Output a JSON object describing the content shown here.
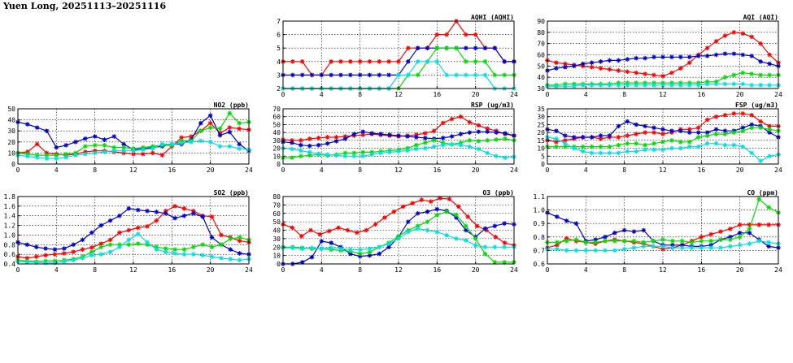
{
  "page": {
    "title": "Yuen Long, 20251113–20251116"
  },
  "colors": {
    "red": "#ff0000",
    "blue": "#0000cc",
    "green": "#00dd00",
    "cyan": "#00e0e0"
  },
  "chart_data": [
    {
      "id": "aqhi",
      "type": "line",
      "title": "AQHI (AQHI)",
      "xlim": [
        0,
        24
      ],
      "ylim": [
        2,
        7
      ],
      "xticks": [
        "0",
        "4",
        "8",
        "12",
        "16",
        "20",
        "24"
      ],
      "yticks": [
        "2",
        "3",
        "4",
        "5",
        "6",
        "7"
      ],
      "series": [
        {
          "color": "red",
          "values": [
            4,
            4,
            4,
            3,
            3,
            4,
            4,
            4,
            4,
            4,
            4,
            4,
            4,
            5,
            5,
            5,
            6,
            6,
            7,
            6,
            6,
            5,
            5,
            4,
            4
          ]
        },
        {
          "color": "blue",
          "values": [
            3,
            3,
            3,
            3,
            3,
            3,
            3,
            3,
            3,
            3,
            3,
            3,
            3,
            4,
            5,
            5,
            5,
            5,
            5,
            5,
            5,
            5,
            5,
            4,
            4
          ]
        },
        {
          "color": "green",
          "values": [
            2,
            2,
            2,
            2,
            2,
            2,
            2,
            2,
            2,
            2,
            2,
            2,
            2,
            3,
            3,
            4,
            5,
            5,
            5,
            4,
            4,
            4,
            3,
            3,
            3
          ]
        },
        {
          "color": "cyan",
          "values": [
            2,
            2,
            2,
            2,
            2,
            2,
            2,
            2,
            2,
            2,
            2,
            2,
            3,
            3,
            4,
            4,
            4,
            3,
            3,
            3,
            3,
            3,
            2,
            2,
            2
          ]
        }
      ]
    },
    {
      "id": "aqi",
      "type": "line",
      "title": "AQI (AQI)",
      "xlim": [
        0,
        24
      ],
      "ylim": [
        30,
        90
      ],
      "xticks": [
        "0",
        "4",
        "8",
        "12",
        "16",
        "20",
        "24"
      ],
      "yticks": [
        "30",
        "40",
        "50",
        "60",
        "70",
        "80",
        "90"
      ],
      "series": [
        {
          "color": "red",
          "values": [
            55,
            53,
            52,
            51,
            50,
            49,
            48,
            47,
            46,
            45,
            44,
            43,
            42,
            41,
            44,
            48,
            53,
            60,
            66,
            72,
            77,
            80,
            79,
            76,
            70,
            60,
            53
          ]
        },
        {
          "color": "blue",
          "values": [
            46,
            48,
            49,
            50,
            52,
            53,
            54,
            55,
            55,
            56,
            57,
            57,
            58,
            58,
            58,
            58,
            58,
            59,
            59,
            60,
            61,
            61,
            60,
            59,
            54,
            52,
            50
          ]
        },
        {
          "color": "green",
          "values": [
            33,
            33,
            34,
            34,
            34,
            34,
            34,
            34,
            35,
            35,
            35,
            35,
            35,
            35,
            35,
            35,
            35,
            35,
            36,
            36,
            40,
            42,
            44,
            43,
            42,
            42,
            42
          ]
        },
        {
          "color": "cyan",
          "values": [
            32,
            32,
            32,
            32,
            33,
            33,
            33,
            33,
            33,
            33,
            33,
            33,
            33,
            33,
            33,
            33,
            33,
            33,
            34,
            34,
            34,
            34,
            34,
            33,
            33,
            33,
            33
          ]
        }
      ]
    },
    {
      "id": "no2",
      "type": "line",
      "title": "NO2 (ppb)",
      "xlim": [
        0,
        24
      ],
      "ylim": [
        0,
        50
      ],
      "xticks": [
        "0",
        "4",
        "8",
        "12",
        "16",
        "20",
        "24"
      ],
      "yticks": [
        "0",
        "10",
        "20",
        "30",
        "40",
        "50"
      ],
      "series": [
        {
          "color": "red",
          "values": [
            10,
            11,
            18,
            10,
            9,
            8,
            9,
            11,
            12,
            12,
            11,
            10,
            9,
            9,
            10,
            8,
            16,
            24,
            25,
            30,
            37,
            28,
            33,
            32,
            31
          ]
        },
        {
          "color": "blue",
          "values": [
            38,
            36,
            33,
            30,
            15,
            17,
            20,
            23,
            25,
            22,
            25,
            18,
            13,
            14,
            15,
            16,
            18,
            18,
            22,
            37,
            44,
            26,
            29,
            18,
            12
          ]
        },
        {
          "color": "green",
          "values": [
            10,
            9,
            8,
            8,
            8,
            9,
            10,
            16,
            17,
            17,
            15,
            15,
            14,
            15,
            16,
            17,
            17,
            21,
            21,
            30,
            33,
            32,
            46,
            37,
            38
          ]
        },
        {
          "color": "cyan",
          "values": [
            8,
            7,
            6,
            5,
            5,
            6,
            8,
            9,
            10,
            11,
            12,
            12,
            12,
            13,
            14,
            18,
            18,
            19,
            20,
            21,
            20,
            16,
            16,
            14,
            13
          ]
        }
      ]
    },
    {
      "id": "rsp",
      "type": "line",
      "title": "RSP (ug/m3)",
      "xlim": [
        0,
        24
      ],
      "ylim": [
        0,
        70
      ],
      "xticks": [
        "0",
        "4",
        "8",
        "12",
        "16",
        "20",
        "24"
      ],
      "yticks": [
        "0",
        "10",
        "20",
        "30",
        "40",
        "50",
        "60",
        "70"
      ],
      "series": [
        {
          "color": "red",
          "values": [
            31,
            30,
            30,
            32,
            33,
            34,
            34,
            35,
            36,
            37,
            38,
            37,
            36,
            35,
            36,
            37,
            39,
            42,
            52,
            57,
            60,
            53,
            49,
            45,
            42,
            38,
            36
          ]
        },
        {
          "color": "blue",
          "values": [
            28,
            27,
            24,
            23,
            24,
            26,
            29,
            32,
            38,
            41,
            39,
            38,
            37,
            36,
            35,
            34,
            33,
            32,
            33,
            35,
            38,
            40,
            41,
            41,
            40,
            39,
            36
          ]
        },
        {
          "color": "green",
          "values": [
            8,
            8,
            10,
            11,
            12,
            11,
            12,
            14,
            14,
            15,
            15,
            16,
            17,
            18,
            20,
            24,
            27,
            30,
            27,
            25,
            27,
            30,
            29,
            30,
            31,
            32,
            30
          ]
        },
        {
          "color": "cyan",
          "values": [
            20,
            19,
            17,
            15,
            13,
            12,
            11,
            10,
            10,
            10,
            12,
            14,
            15,
            16,
            17,
            19,
            20,
            22,
            24,
            25,
            24,
            22,
            19,
            14,
            10,
            8,
            9
          ]
        }
      ]
    },
    {
      "id": "fsp",
      "type": "line",
      "title": "FSP (ug/m3)",
      "xlim": [
        0,
        24
      ],
      "ylim": [
        0,
        35
      ],
      "xticks": [
        "0",
        "4",
        "8",
        "12",
        "16",
        "20",
        "24"
      ],
      "yticks": [
        "0",
        "5",
        "10",
        "15",
        "20",
        "25",
        "30",
        "35"
      ],
      "series": [
        {
          "color": "red",
          "values": [
            15,
            14,
            15,
            16,
            17,
            17,
            16,
            17,
            17,
            18,
            19,
            20,
            20,
            19,
            20,
            22,
            22,
            23,
            28,
            30,
            31,
            32,
            32,
            31,
            27,
            24,
            24
          ]
        },
        {
          "color": "blue",
          "values": [
            22,
            21,
            18,
            17,
            17,
            17,
            18,
            18,
            24,
            27,
            25,
            24,
            23,
            22,
            21,
            21,
            20,
            20,
            20,
            22,
            21,
            21,
            23,
            25,
            24,
            20,
            17
          ]
        },
        {
          "color": "green",
          "values": [
            11,
            11,
            11,
            11,
            11,
            11,
            11,
            11,
            12,
            13,
            13,
            12,
            13,
            14,
            15,
            14,
            14,
            17,
            18,
            19,
            19,
            20,
            21,
            23,
            23,
            22,
            21
          ]
        },
        {
          "color": "cyan",
          "values": [
            17,
            16,
            13,
            10,
            8,
            7,
            7,
            7,
            7,
            8,
            8,
            9,
            9,
            9,
            10,
            10,
            11,
            11,
            13,
            13,
            12,
            12,
            11,
            7,
            2,
            5,
            6
          ]
        }
      ]
    },
    {
      "id": "so2",
      "type": "line",
      "title": "SO2 (ppb)",
      "xlim": [
        0,
        24
      ],
      "ylim": [
        0.4,
        1.8
      ],
      "xticks": [
        "0",
        "4",
        "8",
        "12",
        "16",
        "20",
        "24"
      ],
      "yticks": [
        "0.4",
        "0.6",
        "0.8",
        "1.0",
        "1.2",
        "1.4",
        "1.6",
        "1.8"
      ],
      "series": [
        {
          "color": "red",
          "values": [
            0.55,
            0.52,
            0.55,
            0.58,
            0.6,
            0.62,
            0.65,
            0.7,
            0.74,
            0.82,
            0.9,
            1.05,
            1.1,
            1.15,
            1.18,
            1.3,
            1.5,
            1.6,
            1.55,
            1.5,
            1.4,
            1.38,
            1.0,
            0.95,
            0.88,
            0.85
          ]
        },
        {
          "color": "blue",
          "values": [
            0.85,
            0.8,
            0.75,
            0.72,
            0.7,
            0.72,
            0.8,
            0.9,
            1.05,
            1.2,
            1.3,
            1.4,
            1.55,
            1.52,
            1.5,
            1.48,
            1.45,
            1.35,
            1.4,
            1.45,
            1.38,
            0.95,
            0.8,
            0.7,
            0.62,
            0.6
          ]
        },
        {
          "color": "green",
          "values": [
            0.48,
            0.46,
            0.45,
            0.46,
            0.46,
            0.48,
            0.5,
            0.55,
            0.65,
            0.75,
            0.8,
            0.8,
            0.8,
            0.82,
            0.8,
            0.75,
            0.72,
            0.7,
            0.7,
            0.75,
            0.8,
            0.75,
            0.8,
            0.92,
            0.95,
            0.9
          ]
        },
        {
          "color": "cyan",
          "values": [
            0.45,
            0.44,
            0.43,
            0.42,
            0.42,
            0.45,
            0.48,
            0.52,
            0.58,
            0.6,
            0.65,
            0.75,
            0.9,
            1.02,
            0.85,
            0.7,
            0.65,
            0.62,
            0.6,
            0.6,
            0.58,
            0.55,
            0.52,
            0.5,
            0.48,
            0.5
          ]
        }
      ]
    },
    {
      "id": "o3",
      "type": "line",
      "title": "O3 (ppb)",
      "xlim": [
        0,
        24
      ],
      "ylim": [
        0,
        80
      ],
      "xticks": [
        "0",
        "4",
        "8",
        "12",
        "16",
        "20",
        "24"
      ],
      "yticks": [
        "0",
        "10",
        "20",
        "30",
        "40",
        "50",
        "60",
        "70",
        "80"
      ],
      "series": [
        {
          "color": "red",
          "values": [
            47,
            43,
            33,
            40,
            35,
            39,
            43,
            40,
            37,
            40,
            47,
            55,
            62,
            68,
            72,
            76,
            74,
            78,
            77,
            68,
            56,
            45,
            40,
            32,
            25,
            22
          ]
        },
        {
          "color": "blue",
          "values": [
            0,
            0,
            2,
            8,
            27,
            25,
            20,
            12,
            9,
            10,
            12,
            20,
            32,
            50,
            60,
            62,
            65,
            63,
            55,
            40,
            32,
            42,
            45,
            48,
            47
          ]
        },
        {
          "color": "green",
          "values": [
            20,
            20,
            19,
            18,
            18,
            17,
            16,
            15,
            12,
            14,
            20,
            25,
            33,
            40,
            45,
            50,
            58,
            62,
            58,
            45,
            30,
            12,
            2,
            2,
            2
          ]
        },
        {
          "color": "cyan",
          "values": [
            19,
            19,
            18,
            19,
            18,
            19,
            18,
            17,
            17,
            18,
            20,
            24,
            30,
            38,
            42,
            40,
            38,
            34,
            30,
            28,
            22,
            20,
            20,
            20,
            20
          ]
        }
      ]
    },
    {
      "id": "co",
      "type": "line",
      "title": "CO (ppm)",
      "xlim": [
        0,
        24
      ],
      "ylim": [
        0.6,
        1.1
      ],
      "xticks": [
        "0",
        "4",
        "8",
        "12",
        "16",
        "20",
        "24"
      ],
      "yticks": [
        "0.6",
        "0.7",
        "0.8",
        "0.9",
        "1.0",
        "1.1"
      ],
      "series": [
        {
          "color": "red",
          "values": [
            0.72,
            0.74,
            0.79,
            0.77,
            0.76,
            0.75,
            0.77,
            0.78,
            0.77,
            0.76,
            0.75,
            0.73,
            0.71,
            0.72,
            0.74,
            0.77,
            0.8,
            0.82,
            0.84,
            0.86,
            0.89,
            0.89,
            0.89,
            0.89,
            0.89
          ]
        },
        {
          "color": "blue",
          "values": [
            0.98,
            0.95,
            0.92,
            0.9,
            0.77,
            0.78,
            0.8,
            0.83,
            0.85,
            0.84,
            0.85,
            0.77,
            0.74,
            0.74,
            0.74,
            0.73,
            0.73,
            0.74,
            0.78,
            0.8,
            0.83,
            0.83,
            0.78,
            0.73,
            0.72
          ]
        },
        {
          "color": "green",
          "values": [
            0.76,
            0.76,
            0.77,
            0.78,
            0.76,
            0.76,
            0.77,
            0.77,
            0.77,
            0.77,
            0.76,
            0.77,
            0.78,
            0.77,
            0.77,
            0.76,
            0.77,
            0.77,
            0.78,
            0.78,
            0.8,
            0.86,
            1.08,
            1.02,
            0.98
          ]
        },
        {
          "color": "cyan",
          "values": [
            0.71,
            0.71,
            0.7,
            0.7,
            0.7,
            0.7,
            0.7,
            0.7,
            0.71,
            0.72,
            0.73,
            0.73,
            0.73,
            0.72,
            0.72,
            0.72,
            0.72,
            0.72,
            0.72,
            0.73,
            0.74,
            0.75,
            0.77,
            0.76,
            0.75
          ]
        }
      ]
    }
  ]
}
